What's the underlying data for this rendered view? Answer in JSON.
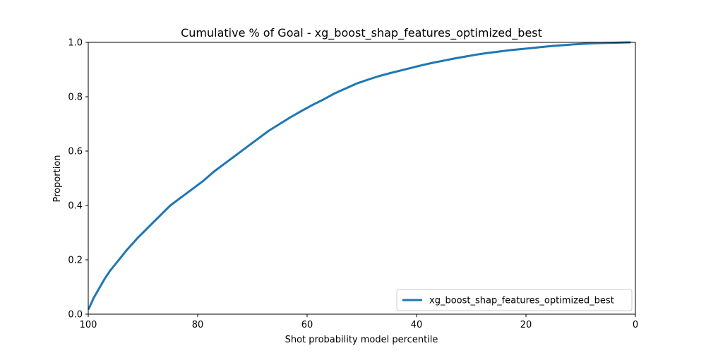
{
  "chart_data": {
    "type": "line",
    "title": "Cumulative % of Goal - xg_boost_shap_features_optimized_best",
    "xlabel": "Shot probability model percentile",
    "ylabel": "Proportion",
    "xlim": [
      100,
      0
    ],
    "ylim": [
      0,
      1
    ],
    "x_inverted": true,
    "grid": false,
    "legend_position": "lower-right",
    "xticks": [
      100,
      80,
      60,
      40,
      20,
      0
    ],
    "xtick_labels": [
      "100",
      "80",
      "60",
      "40",
      "20",
      "0"
    ],
    "yticks": [
      0,
      0.2,
      0.4,
      0.6,
      0.8,
      1.0
    ],
    "ytick_labels": [
      "0.0",
      "0.2",
      "0.4",
      "0.6",
      "0.8",
      "1.0"
    ],
    "series": [
      {
        "name": "xg_boost_shap_features_optimized_best",
        "color": "#1f77b4",
        "x": [
          99.9,
          99,
          98,
          97,
          96,
          95,
          93,
          91,
          90,
          88,
          86,
          85,
          83,
          81,
          79,
          77,
          75,
          73,
          71,
          69,
          67,
          65,
          63,
          61,
          59,
          57,
          55,
          53,
          51,
          49,
          47,
          45,
          43,
          41,
          39,
          37,
          35,
          33,
          31,
          29,
          27,
          25,
          23,
          21,
          19,
          17,
          15,
          13,
          11,
          9,
          7,
          5,
          3,
          1
        ],
        "y": [
          0.02,
          0.06,
          0.095,
          0.13,
          0.16,
          0.185,
          0.235,
          0.28,
          0.3,
          0.34,
          0.38,
          0.4,
          0.43,
          0.46,
          0.49,
          0.525,
          0.555,
          0.585,
          0.615,
          0.645,
          0.675,
          0.7,
          0.725,
          0.748,
          0.77,
          0.79,
          0.812,
          0.83,
          0.848,
          0.862,
          0.875,
          0.886,
          0.896,
          0.906,
          0.916,
          0.925,
          0.933,
          0.941,
          0.948,
          0.955,
          0.961,
          0.966,
          0.971,
          0.975,
          0.979,
          0.983,
          0.987,
          0.99,
          0.993,
          0.995,
          0.997,
          0.998,
          0.999,
          1.0
        ]
      }
    ]
  }
}
